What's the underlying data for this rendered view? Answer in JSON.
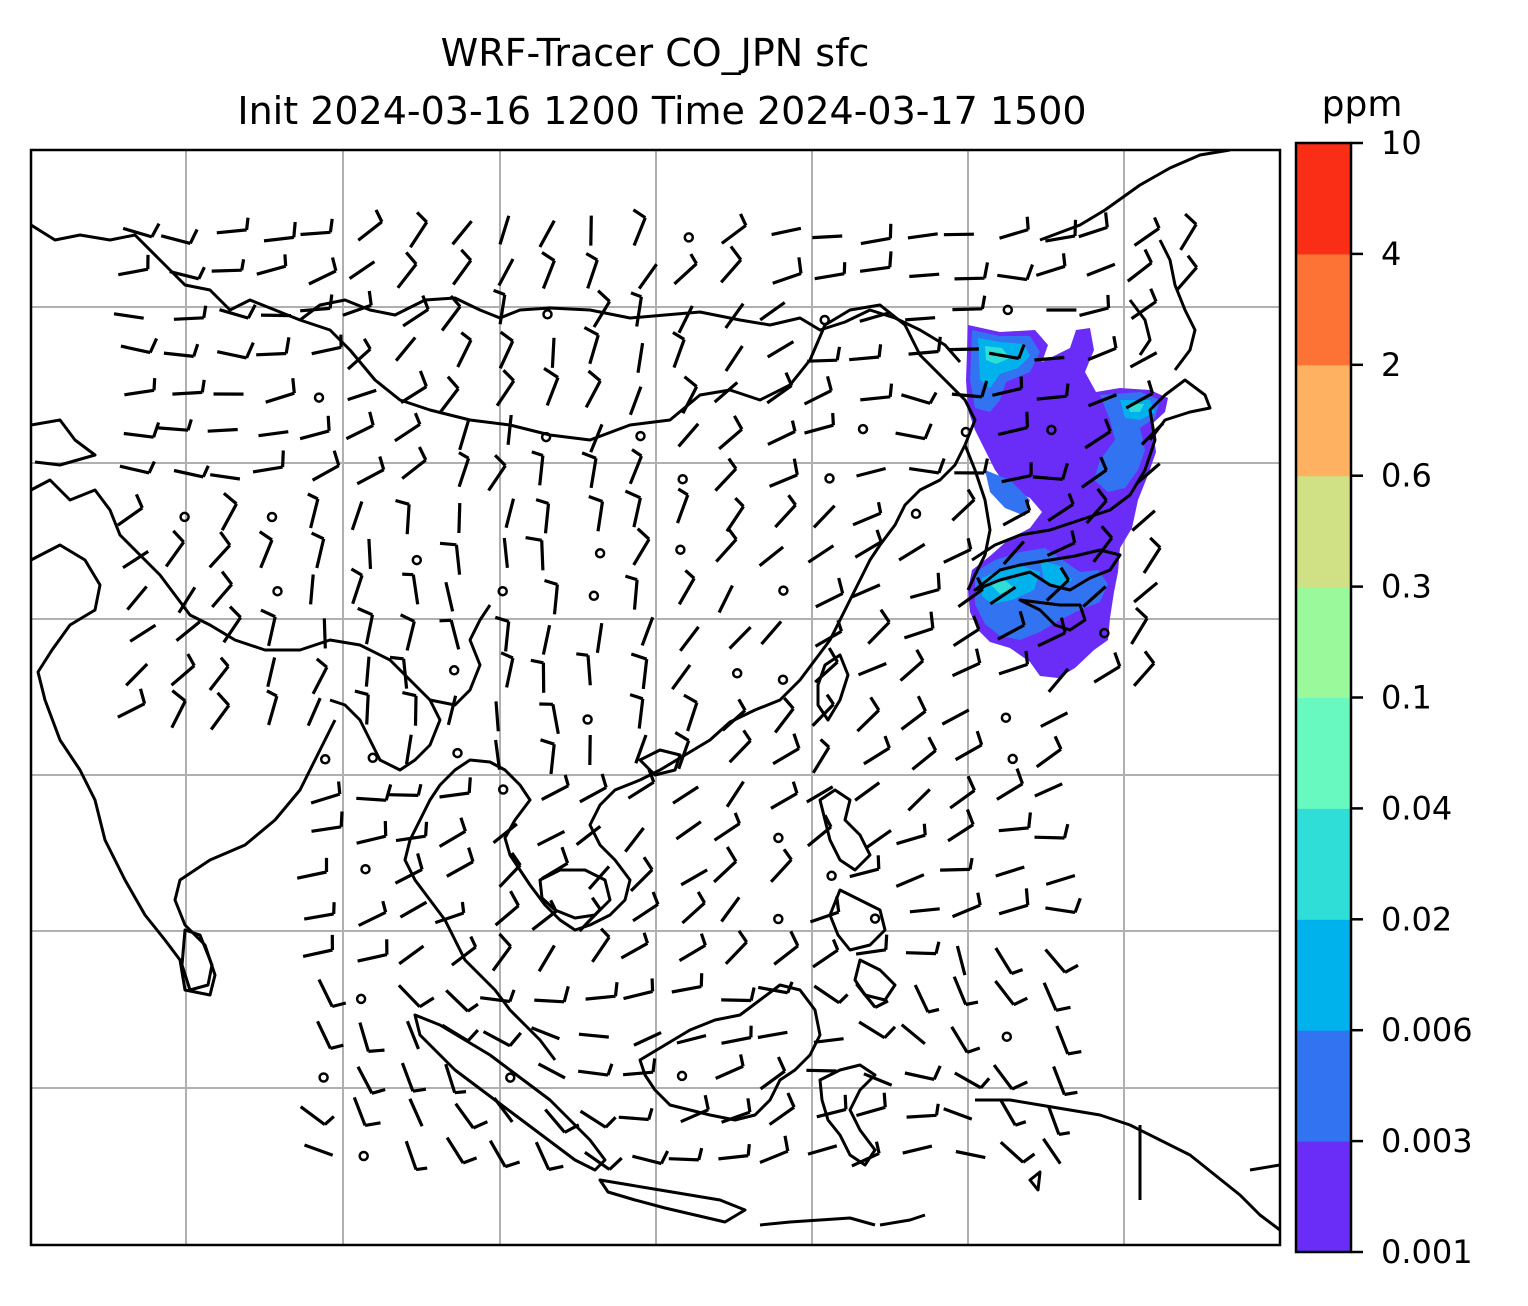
{
  "title": {
    "line1": "WRF-Tracer CO_JPN sfc",
    "line2": "Init 2024-03-16 1200 Time 2024-03-17 1500"
  },
  "colorbar": {
    "unit": "ppm",
    "levels": [
      "0.001",
      "0.003",
      "0.006",
      "0.02",
      "0.04",
      "0.1",
      "0.3",
      "0.6",
      "2",
      "4",
      "10"
    ],
    "colors": [
      "#6a2cf7",
      "#3273f2",
      "#00b2ec",
      "#2fdfd7",
      "#67f9c0",
      "#99f99b",
      "#d0e085",
      "#fdb161",
      "#fd7235",
      "#fa2d16"
    ]
  },
  "map": {
    "gridlines": true,
    "gridline_color": "#b0b0b0",
    "coastline_color": "#000000",
    "tracer_colors": {
      "low": "#6a2cf7",
      "mid": "#3273f2",
      "high": "#00b2ec",
      "peak": "#2fdfd7"
    }
  }
}
